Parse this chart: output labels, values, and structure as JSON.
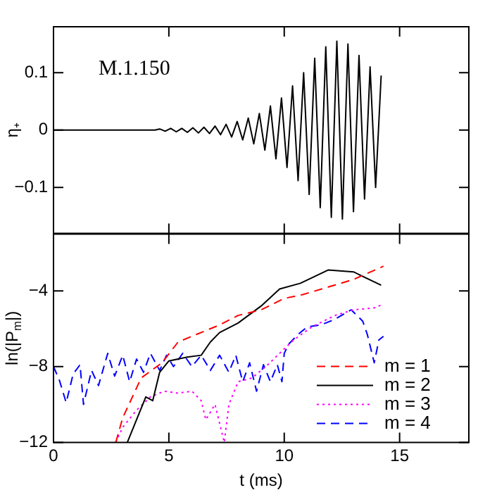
{
  "chart_data": [
    {
      "type": "line",
      "ylabel": "η₊",
      "annotations": [
        "M.1.150"
      ],
      "color": "#000000",
      "marker": "none",
      "line_style": "solid",
      "tick_labels": "y",
      "xlim": [
        0,
        18
      ],
      "xticks": [
        0,
        5,
        10,
        15
      ],
      "ylim": [
        -0.18,
        0.18
      ],
      "yticks": [
        -0.1,
        0,
        0.1
      ],
      "x": [
        0,
        4.4,
        4.6,
        4.84,
        5.08,
        5.32,
        5.56,
        5.8,
        6.04,
        6.28,
        6.52,
        6.76,
        7.0,
        7.24,
        7.48,
        7.72,
        7.96,
        8.2,
        8.44,
        8.68,
        8.92,
        9.16,
        9.4,
        9.64,
        9.88,
        10.12,
        10.36,
        10.6,
        10.84,
        11.08,
        11.32,
        11.56,
        11.8,
        12.04,
        12.28,
        12.52,
        12.76,
        13.0,
        13.24,
        13.48,
        13.72,
        13.96,
        14.2
      ],
      "values": [
        0,
        0,
        0.002,
        -0.002,
        0.003,
        -0.003,
        0.003,
        -0.004,
        0.004,
        -0.005,
        0.005,
        -0.006,
        0.007,
        -0.008,
        0.01,
        -0.012,
        0.015,
        -0.017,
        0.021,
        -0.024,
        0.029,
        -0.035,
        0.042,
        -0.05,
        0.056,
        -0.065,
        0.077,
        -0.088,
        0.1,
        -0.112,
        0.125,
        -0.135,
        0.145,
        -0.152,
        0.155,
        -0.155,
        0.15,
        -0.142,
        0.13,
        -0.12,
        0.11,
        -0.1,
        0.095
      ]
    },
    {
      "type": "line",
      "xlabel": "t (ms)",
      "ylabel": "ln(|P$_{m}$|)",
      "marker": "none",
      "legend": "bottom right",
      "xlim": [
        0,
        18
      ],
      "xticks": [
        0,
        5,
        10,
        15
      ],
      "ylim": [
        -12,
        -1
      ],
      "yticks": [
        -12,
        -8,
        -4
      ],
      "series": [
        {
          "name": "m = 1",
          "color": "#ff0000",
          "line_style": "dashed",
          "x": [
            2.7,
            3.0,
            3.8,
            4.7,
            5.4,
            6.2,
            7.2,
            8.0,
            9.0,
            10.0,
            10.8,
            11.9,
            13.0,
            14.3
          ],
          "values": [
            -12,
            -10.7,
            -8.6,
            -7.8,
            -6.7,
            -6.3,
            -5.8,
            -5.3,
            -5.0,
            -4.4,
            -4.2,
            -3.8,
            -3.4,
            -2.7
          ]
        },
        {
          "name": "m = 2",
          "color": "#000000",
          "line_style": "solid",
          "x": [
            3.2,
            3.6,
            4.0,
            4.3,
            4.6,
            5.0,
            5.8,
            6.4,
            6.8,
            7.2,
            8.0,
            9.0,
            9.8,
            10.7,
            11.9,
            13.0,
            14.2
          ],
          "values": [
            -12,
            -10.8,
            -9.6,
            -9.8,
            -8.3,
            -7.7,
            -7.5,
            -7.4,
            -6.7,
            -6.2,
            -5.7,
            -4.8,
            -3.9,
            -3.6,
            -2.9,
            -3.0,
            -3.7
          ]
        },
        {
          "name": "m = 3",
          "color": "#ff00ff",
          "line_style": "dotted",
          "x": [
            2.7,
            3.0,
            3.6,
            4.2,
            4.8,
            5.4,
            6.0,
            6.4,
            6.6,
            7.0,
            7.4,
            7.6,
            8.0,
            8.6,
            9.2,
            9.8,
            10.4,
            11.2,
            12.2,
            13.0,
            13.9,
            14.3
          ],
          "values": [
            -12,
            -11.2,
            -10.3,
            -9.6,
            -9.3,
            -9.4,
            -9.3,
            -9.8,
            -10.8,
            -10.0,
            -12,
            -10,
            -8.8,
            -8.6,
            -8.0,
            -7.3,
            -6.6,
            -5.9,
            -5.3,
            -5.0,
            -4.9,
            -4.7
          ]
        },
        {
          "name": "m = 4",
          "color": "#0000ff",
          "line_style": "dashed",
          "x": [
            0,
            0.25,
            0.55,
            0.85,
            1.15,
            1.3,
            1.65,
            1.95,
            2.35,
            2.65,
            3.0,
            3.3,
            3.6,
            3.9,
            4.2,
            4.6,
            4.9,
            5.2,
            5.6,
            6.0,
            6.4,
            6.8,
            7.2,
            7.6,
            7.9,
            8.2,
            8.5,
            8.8,
            9.1,
            9.4,
            9.7,
            9.9,
            10.0,
            10.2,
            10.6,
            11.0,
            11.6,
            12.2,
            12.9,
            13.4,
            13.6,
            13.9,
            14.1,
            14.3
          ],
          "values": [
            -8.0,
            -8.7,
            -9.9,
            -8.4,
            -7.9,
            -10,
            -8.2,
            -9.0,
            -7.3,
            -8.5,
            -7.4,
            -8.8,
            -7.6,
            -8.3,
            -7.3,
            -8.2,
            -7.4,
            -8.0,
            -7.3,
            -8.0,
            -7.4,
            -8.2,
            -7.4,
            -8.3,
            -7.4,
            -8.8,
            -7.8,
            -9.3,
            -7.9,
            -8.8,
            -7.9,
            -8.8,
            -7.3,
            -6.8,
            -6.3,
            -5.9,
            -5.8,
            -5.5,
            -5.0,
            -5.6,
            -6.3,
            -7.8,
            -6.6,
            -6.4
          ]
        }
      ]
    }
  ]
}
